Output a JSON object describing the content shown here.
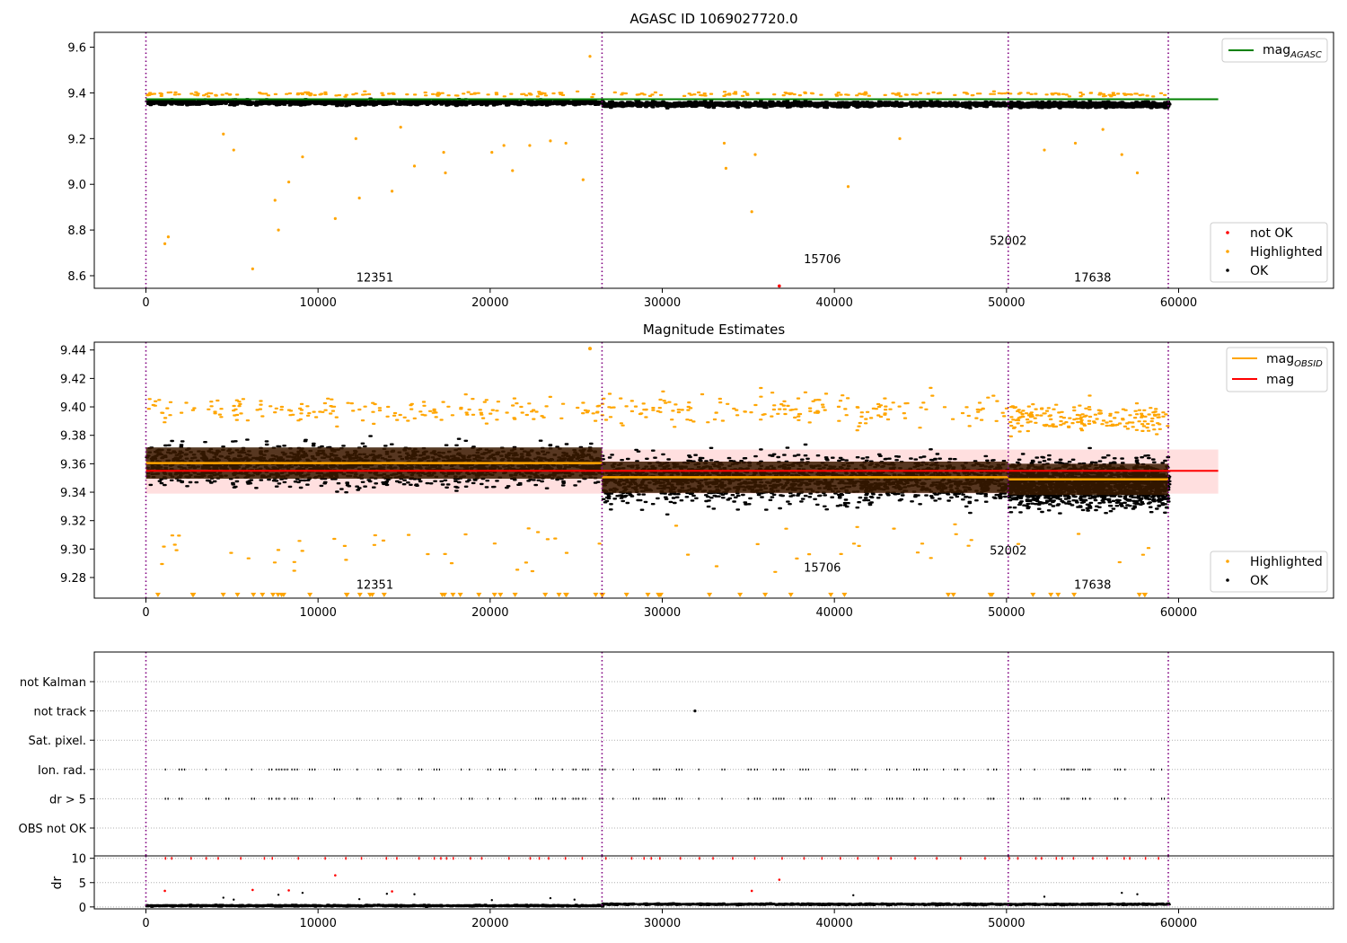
{
  "panels": [
    {
      "id": "top",
      "title": "AGASC ID 1069027720.0",
      "xlim": [
        -3000,
        69000
      ],
      "ylim": [
        8.545,
        9.665
      ],
      "yticks": [
        "9.6",
        "9.4",
        "9.2",
        "9.0",
        "8.8",
        "8.6"
      ],
      "ytick_values": [
        9.6,
        9.4,
        9.2,
        9.0,
        8.8,
        8.6
      ],
      "xticks": [
        "0",
        "10000",
        "20000",
        "30000",
        "40000",
        "50000",
        "60000"
      ],
      "xtick_values": [
        0,
        10000,
        20000,
        30000,
        40000,
        50000,
        60000
      ],
      "band_center": 9.357,
      "band_halfwidth": 0.02,
      "mag_agasc": 9.372,
      "legend_lines": [
        {
          "label": "mag",
          "sub": "AGASC",
          "color": "#008000"
        }
      ],
      "legend_points": [
        {
          "label": "not OK",
          "color": "#ff0000"
        },
        {
          "label": "Highlighted",
          "color": "#ffa500"
        },
        {
          "label": "OK",
          "color": "#000000"
        }
      ],
      "annotations": [
        {
          "text": "12351",
          "x": 13300,
          "y": 8.575
        },
        {
          "text": "15706",
          "x": 39300,
          "y": 8.655
        },
        {
          "text": "52002",
          "x": 50100,
          "y": 8.735
        },
        {
          "text": "17638",
          "x": 55000,
          "y": 8.575
        }
      ],
      "highlighted": [
        [
          1100,
          8.74
        ],
        [
          1300,
          8.77
        ],
        [
          4500,
          9.22
        ],
        [
          5100,
          9.15
        ],
        [
          6200,
          8.63
        ],
        [
          7500,
          8.93
        ],
        [
          7700,
          8.8
        ],
        [
          8300,
          9.01
        ],
        [
          9100,
          9.12
        ],
        [
          11000,
          8.85
        ],
        [
          12200,
          9.2
        ],
        [
          12400,
          8.94
        ],
        [
          14300,
          8.97
        ],
        [
          14800,
          9.25
        ],
        [
          15600,
          9.08
        ],
        [
          17300,
          9.14
        ],
        [
          17400,
          9.05
        ],
        [
          20100,
          9.14
        ],
        [
          20800,
          9.17
        ],
        [
          21300,
          9.06
        ],
        [
          22300,
          9.17
        ],
        [
          23500,
          9.19
        ],
        [
          24400,
          9.18
        ],
        [
          25400,
          9.02
        ],
        [
          25800,
          9.56
        ],
        [
          33600,
          9.18
        ],
        [
          33700,
          9.07
        ],
        [
          35200,
          8.88
        ],
        [
          35400,
          9.13
        ],
        [
          40800,
          8.99
        ],
        [
          43800,
          9.2
        ],
        [
          52200,
          9.15
        ],
        [
          54000,
          9.18
        ],
        [
          55600,
          9.24
        ],
        [
          56700,
          9.13
        ],
        [
          57600,
          9.05
        ]
      ],
      "not_ok": [
        [
          36800,
          8.555
        ]
      ]
    },
    {
      "id": "middle",
      "title": "Magnitude Estimates",
      "xlim": [
        -3000,
        69000
      ],
      "ylim": [
        9.2655,
        9.4455
      ],
      "yticks": [
        "9.44",
        "9.42",
        "9.40",
        "9.38",
        "9.36",
        "9.34",
        "9.32",
        "9.30",
        "9.28"
      ],
      "ytick_values": [
        9.44,
        9.42,
        9.4,
        9.38,
        9.36,
        9.34,
        9.32,
        9.3,
        9.28
      ],
      "xticks": [
        "0",
        "10000",
        "20000",
        "30000",
        "40000",
        "50000",
        "60000"
      ],
      "xtick_values": [
        0,
        10000,
        20000,
        30000,
        40000,
        50000,
        60000
      ],
      "mag": 9.355,
      "mag_band": [
        9.339,
        9.37
      ],
      "obsid_segments": [
        {
          "x": [
            0,
            26500
          ],
          "mag": 9.3605
        },
        {
          "x": [
            26500,
            50100
          ],
          "mag": 9.3505
        },
        {
          "x": [
            50100,
            59400
          ],
          "mag": 9.349
        }
      ],
      "legend_lines": [
        {
          "label": "mag",
          "sub": "OBSID",
          "color": "#ffa500"
        },
        {
          "label": "mag",
          "sub": "",
          "color": "#ff0000"
        }
      ],
      "legend_points": [
        {
          "label": "Highlighted",
          "color": "#ffa500"
        },
        {
          "label": "OK",
          "color": "#000000"
        }
      ],
      "annotations": [
        {
          "text": "12351",
          "x": 13300,
          "y": 9.272
        },
        {
          "text": "15706",
          "x": 39300,
          "y": 9.284
        },
        {
          "text": "52002",
          "x": 50100,
          "y": 9.296
        },
        {
          "text": "17638",
          "x": 55000,
          "y": 9.272
        }
      ]
    },
    {
      "id": "flags",
      "categories": [
        "not Kalman",
        "not track",
        "Sat. pixel.",
        "Ion. rad.",
        "dr > 5",
        "OBS not OK"
      ],
      "xlim": [
        -3000,
        69000
      ],
      "not_track_point": [
        31900
      ]
    },
    {
      "id": "dr",
      "ylabel": "dr",
      "xlim": [
        -3000,
        69000
      ],
      "ylim": [
        -0.4,
        10.5
      ],
      "yticks": [
        "10",
        "5",
        "0"
      ],
      "ytick_values": [
        10,
        5,
        0
      ],
      "xticks": [
        "0",
        "10000",
        "20000",
        "30000",
        "40000",
        "50000",
        "60000"
      ],
      "xtick_values": [
        0,
        10000,
        20000,
        30000,
        40000,
        50000,
        60000
      ],
      "dr_outliers_red": [
        [
          1100,
          3.3
        ],
        [
          6200,
          3.5
        ],
        [
          8300,
          3.4
        ],
        [
          11000,
          6.5
        ],
        [
          14300,
          3.2
        ],
        [
          35200,
          3.3
        ],
        [
          36800,
          5.6
        ]
      ],
      "dr_outliers_black": [
        [
          4500,
          1.9
        ],
        [
          5100,
          1.5
        ],
        [
          7700,
          2.5
        ],
        [
          9100,
          2.9
        ],
        [
          12400,
          1.6
        ],
        [
          14000,
          2.7
        ],
        [
          15600,
          2.6
        ],
        [
          20100,
          1.4
        ],
        [
          23500,
          1.8
        ],
        [
          24900,
          1.5
        ],
        [
          41100,
          2.4
        ],
        [
          52200,
          2.1
        ],
        [
          56700,
          2.9
        ],
        [
          57600,
          2.6
        ]
      ]
    }
  ],
  "obsid_boundaries": [
    0,
    26500,
    50100,
    59400
  ],
  "colors": {
    "ok": "#000000",
    "highlighted": "#ffa500",
    "not_ok": "#ff0000",
    "boundary": "#800080",
    "agasc": "#008000",
    "mag": "#ff0000",
    "obsid": "#ffa500",
    "band": "#ffc0c0",
    "darkband": "#3a1a00"
  }
}
